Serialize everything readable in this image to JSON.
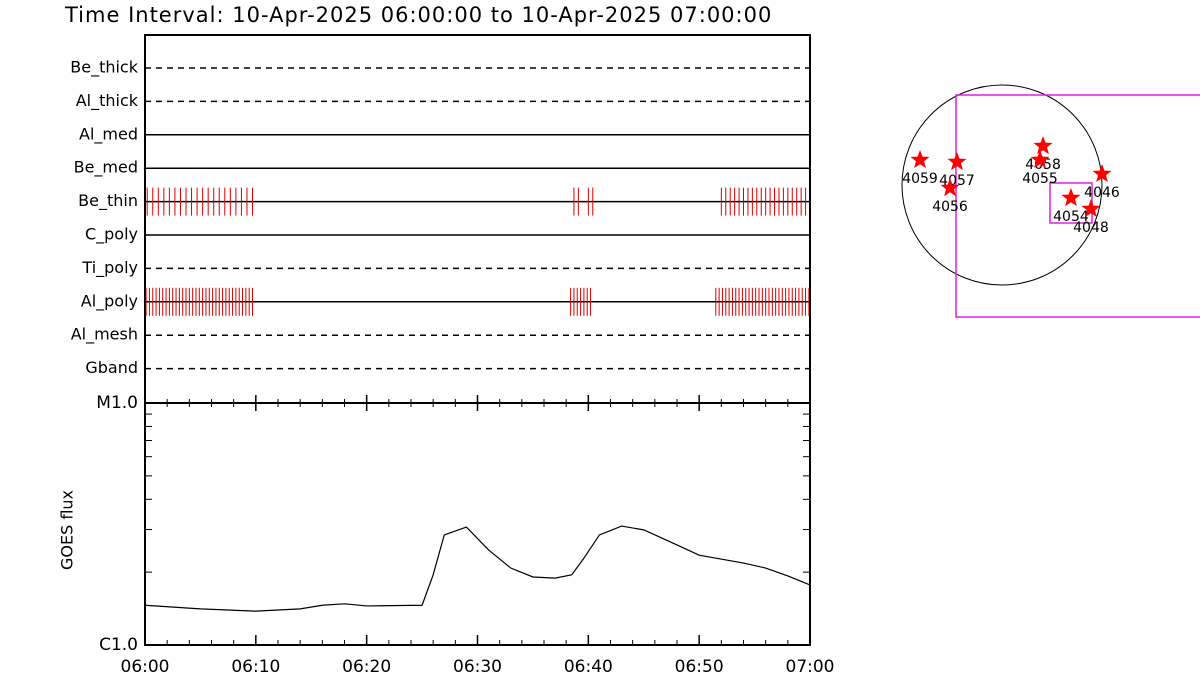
{
  "chart_data": [
    {
      "type": "timeline",
      "title": "Time Interval: 10-Apr-2025 06:00:00 to 10-Apr-2025 07:00:00",
      "categories": [
        "Be_thick",
        "Al_thick",
        "Al_med",
        "Be_med",
        "Be_thin",
        "C_poly",
        "Ti_poly",
        "Al_poly",
        "Al_mesh",
        "Gband"
      ],
      "line_styles": [
        "dashed",
        "dashed",
        "solid",
        "solid",
        "solid",
        "solid",
        "dashed",
        "solid",
        "dashed",
        "dashed"
      ],
      "exposures": [
        [],
        [],
        [],
        [],
        [
          0.2,
          0.7,
          1.2,
          1.7,
          2.2,
          2.7,
          3.2,
          3.7,
          4.2,
          4.7,
          5.2,
          5.7,
          6.2,
          6.7,
          7.2,
          7.7,
          8.2,
          8.7,
          9.2,
          9.7,
          38.7,
          39.1,
          40.0,
          40.4,
          52.0,
          52.4,
          52.8,
          53.2,
          53.6,
          54.0,
          54.4,
          54.8,
          55.2,
          55.6,
          56.0,
          56.4,
          56.8,
          57.2,
          57.6,
          58.0,
          58.4,
          58.8,
          59.2,
          59.6
        ],
        [],
        [],
        [
          0.1,
          0.4,
          0.7,
          1.0,
          1.3,
          1.6,
          1.9,
          2.2,
          2.5,
          2.8,
          3.1,
          3.4,
          3.7,
          4.0,
          4.3,
          4.6,
          4.9,
          5.2,
          5.5,
          5.8,
          6.1,
          6.4,
          6.7,
          7.0,
          7.3,
          7.6,
          7.9,
          8.2,
          8.5,
          8.8,
          9.1,
          9.4,
          9.7,
          38.4,
          38.7,
          39.0,
          39.3,
          39.6,
          39.9,
          40.2,
          51.5,
          51.8,
          52.1,
          52.4,
          52.7,
          53.0,
          53.3,
          53.6,
          53.9,
          54.2,
          54.5,
          54.8,
          55.1,
          55.4,
          55.7,
          56.0,
          56.3,
          56.6,
          56.9,
          57.2,
          57.5,
          57.8,
          58.1,
          58.4,
          58.7,
          59.0,
          59.3,
          59.6,
          59.9
        ],
        [],
        []
      ],
      "xlim": [
        0,
        60
      ],
      "color": "#dd0000"
    },
    {
      "type": "line",
      "y_label": "GOES flux",
      "log_scale": true,
      "color": "#000000",
      "x": [
        0,
        5,
        10,
        14,
        16,
        18,
        20,
        25,
        26,
        27,
        29,
        31,
        33,
        35,
        37,
        38.5,
        39.5,
        41,
        43,
        45,
        48,
        50,
        54,
        56,
        58,
        60
      ],
      "values": [
        1.46e-06,
        1.41e-06,
        1.38e-06,
        1.41e-06,
        1.46e-06,
        1.48e-06,
        1.45e-06,
        1.46e-06,
        1.95e-06,
        2.85e-06,
        3.07e-06,
        2.47e-06,
        2.08e-06,
        1.91e-06,
        1.89e-06,
        1.95e-06,
        2.25e-06,
        2.85e-06,
        3.1e-06,
        2.99e-06,
        2.59e-06,
        2.35e-06,
        2.18e-06,
        2.08e-06,
        1.93e-06,
        1.77e-06
      ],
      "xlim": [
        0,
        60
      ],
      "xticks": [
        {
          "value": 0,
          "label": "06:00"
        },
        {
          "value": 10,
          "label": "06:10"
        },
        {
          "value": 20,
          "label": "06:20"
        },
        {
          "value": 30,
          "label": "06:30"
        },
        {
          "value": 40,
          "label": "06:40"
        },
        {
          "value": 50,
          "label": "06:50"
        },
        {
          "value": 60,
          "label": "07:00"
        }
      ],
      "minor_xticks": [
        2,
        4,
        6,
        8,
        12,
        14,
        16,
        18,
        22,
        24,
        26,
        28,
        32,
        34,
        36,
        38,
        42,
        44,
        46,
        48,
        52,
        54,
        56,
        58
      ],
      "ylim": [
        1e-06,
        1e-05
      ],
      "yticks": [
        {
          "value": 1e-06,
          "label": "C1.0"
        },
        {
          "value": 1e-05,
          "label": "M1.0"
        }
      ],
      "minor_yticks": [
        2e-06,
        3e-06,
        4e-06,
        5e-06,
        6e-06,
        7e-06,
        8e-06,
        9e-06
      ]
    },
    {
      "type": "map",
      "color": "#ff0000",
      "labels": [
        "4059",
        "4057",
        "4056",
        "4058",
        "4055",
        "4046",
        "4054",
        "4048"
      ],
      "x": [
        -787,
        -432,
        -499,
        394,
        365,
        960,
        662,
        854
      ],
      "y": [
        240,
        221,
        -29,
        374,
        240,
        106,
        -125,
        -230
      ]
    }
  ]
}
